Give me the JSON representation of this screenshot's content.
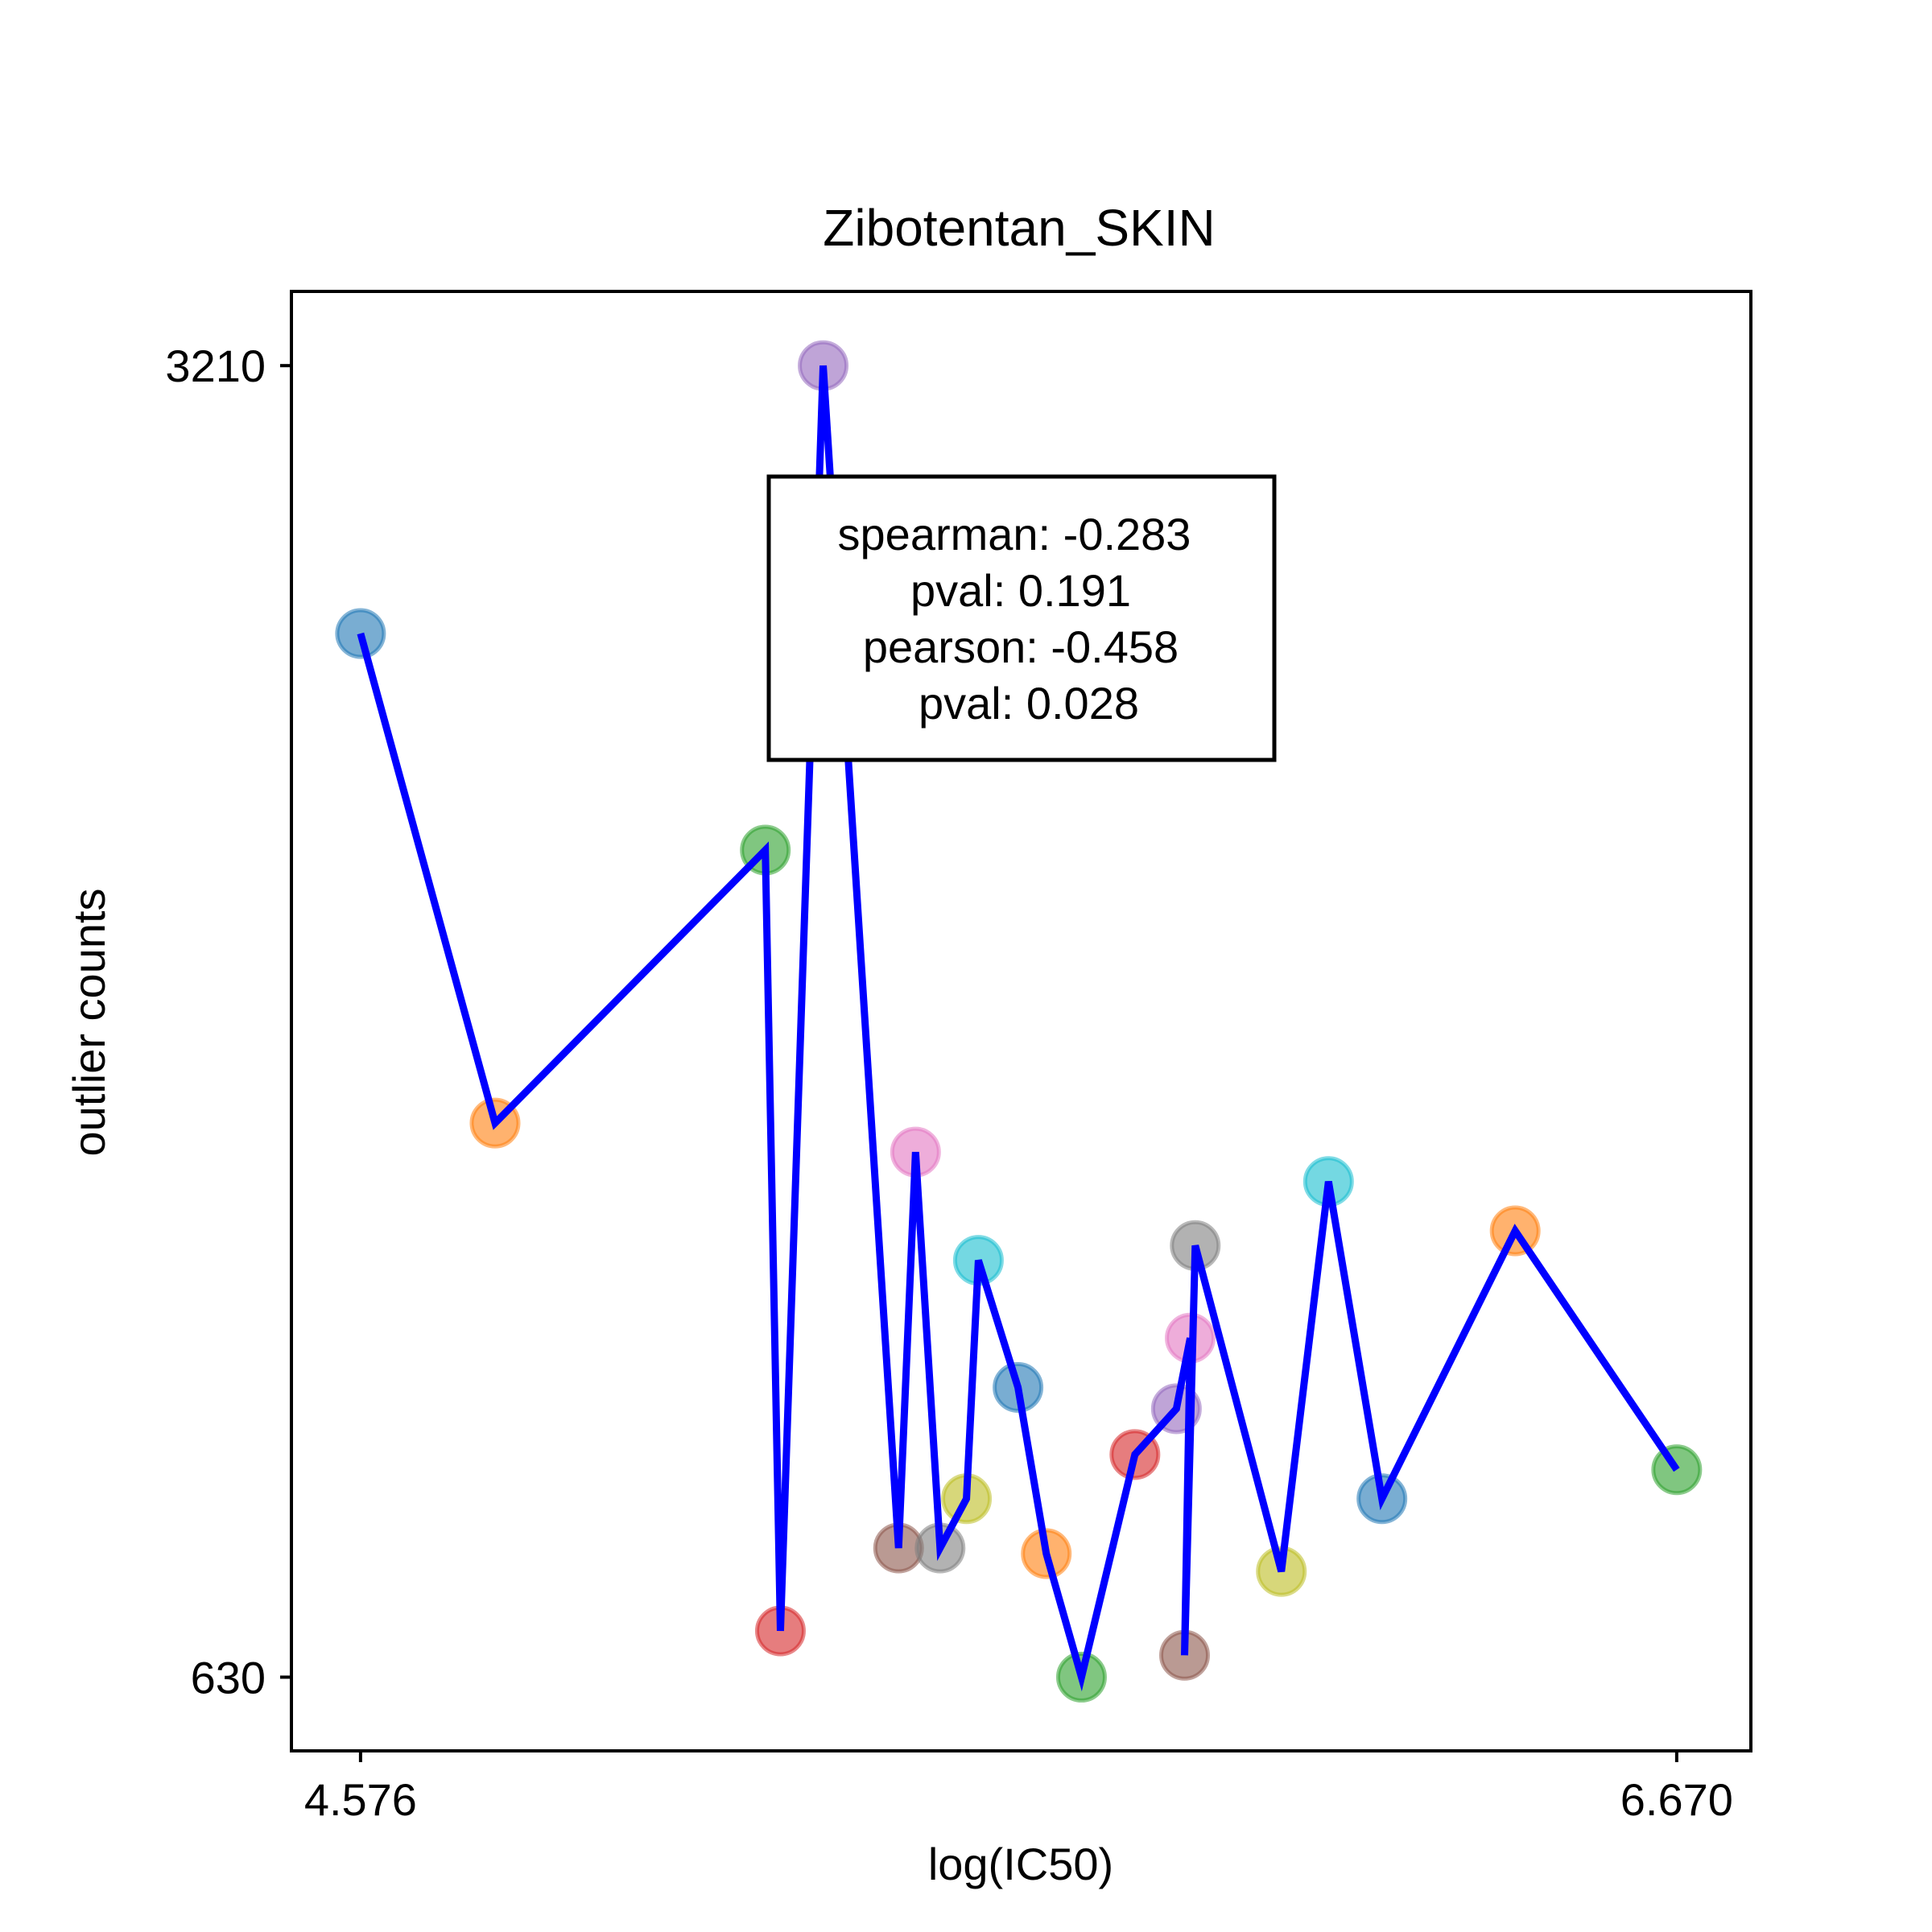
{
  "chart_data": {
    "type": "scatter",
    "title": "Zibotentan_SKIN",
    "xlabel": "log(IC50)",
    "ylabel": "outlier counts",
    "xticks": [
      "4.576",
      "6.670"
    ],
    "yticks": [
      "3210",
      "630"
    ],
    "xlim": [
      4.466,
      6.788
    ],
    "ylim": [
      485,
      3356
    ],
    "grid": false,
    "line_color": "#0000ff",
    "annotation": {
      "lines": [
        "spearman: -0.283",
        "pval: 0.191",
        "pearson: -0.458",
        "pval: 0.028"
      ],
      "placement": "top-center"
    },
    "points": [
      {
        "x": 4.576,
        "y": 2683,
        "color": "#1f77b4"
      },
      {
        "x": 4.79,
        "y": 1720,
        "color": "#ff7f0e"
      },
      {
        "x": 5.22,
        "y": 2257,
        "color": "#2ca02c"
      },
      {
        "x": 5.244,
        "y": 721,
        "color": "#d62728"
      },
      {
        "x": 5.312,
        "y": 3210,
        "color": "#9467bd"
      },
      {
        "x": 5.432,
        "y": 884,
        "color": "#8c564b"
      },
      {
        "x": 5.459,
        "y": 1663,
        "color": "#e377c2"
      },
      {
        "x": 5.498,
        "y": 884,
        "color": "#7f7f7f"
      },
      {
        "x": 5.54,
        "y": 981,
        "color": "#bcbd22"
      },
      {
        "x": 5.559,
        "y": 1450,
        "color": "#17becf"
      },
      {
        "x": 5.622,
        "y": 1200,
        "color": "#1f77b4"
      },
      {
        "x": 5.667,
        "y": 873,
        "color": "#ff7f0e"
      },
      {
        "x": 5.723,
        "y": 630,
        "color": "#2ca02c"
      },
      {
        "x": 5.808,
        "y": 1068,
        "color": "#d62728"
      },
      {
        "x": 5.874,
        "y": 1158,
        "color": "#9467bd"
      },
      {
        "x": 5.896,
        "y": 1297,
        "color": "#e377c2"
      },
      {
        "x": 5.887,
        "y": 673,
        "color": "#8c564b"
      },
      {
        "x": 5.904,
        "y": 1479,
        "color": "#7f7f7f"
      },
      {
        "x": 6.041,
        "y": 838,
        "color": "#bcbd22"
      },
      {
        "x": 6.116,
        "y": 1605,
        "color": "#17becf"
      },
      {
        "x": 6.201,
        "y": 981,
        "color": "#1f77b4"
      },
      {
        "x": 6.413,
        "y": 1508,
        "color": "#ff7f0e"
      },
      {
        "x": 6.67,
        "y": 1038,
        "color": "#2ca02c"
      }
    ]
  }
}
